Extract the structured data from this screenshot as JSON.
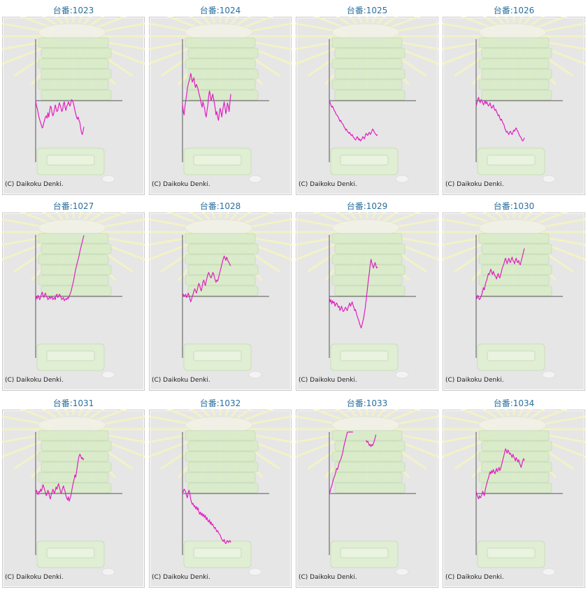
{
  "colors": {
    "line": "#e020c0",
    "axis": "#555555",
    "background": "#e6e6e6",
    "title": "#2a6f9e"
  },
  "copyright": "(C) Daikoku Denki.",
  "chart_data": [
    {
      "type": "line",
      "title": "台番:1023",
      "values": [
        0,
        -10,
        -14,
        -22,
        -30,
        -35,
        -40,
        -45,
        -50,
        -48,
        -40,
        -35,
        -30,
        -28,
        -32,
        -22,
        -30,
        -20,
        -10,
        -12,
        -22,
        -28,
        -24,
        -16,
        -8,
        -14,
        -20,
        -18,
        -10,
        -4,
        -8,
        -14,
        -20,
        -16,
        -6,
        -2,
        -12,
        -18,
        -10,
        -8,
        -2,
        -6,
        -10,
        -4,
        2,
        0,
        -4,
        -10,
        -18,
        -24,
        -30,
        -34,
        -30,
        -36,
        -40,
        -50,
        -58,
        -62,
        -56,
        -48
      ]
    },
    {
      "type": "line",
      "title": "台番:1024",
      "values": [
        -6,
        -20,
        -26,
        -10,
        0,
        10,
        22,
        30,
        36,
        40,
        50,
        44,
        34,
        38,
        42,
        30,
        24,
        30,
        26,
        22,
        14,
        8,
        2,
        -6,
        -12,
        -2,
        -8,
        -14,
        -24,
        -30,
        -18,
        -8,
        8,
        18,
        10,
        0,
        6,
        12,
        4,
        -4,
        -14,
        -26,
        -20,
        -30,
        -36,
        -24,
        -14,
        -20,
        -30,
        -20,
        -10,
        -2,
        -12,
        -24,
        -16,
        -4,
        -10,
        -20,
        -4,
        12
      ]
    },
    {
      "type": "line",
      "title": "台番:1025",
      "values": [
        0,
        -4,
        -8,
        -12,
        -10,
        -14,
        -18,
        -20,
        -24,
        -26,
        -28,
        -30,
        -34,
        -38,
        -36,
        -40,
        -42,
        -44,
        -48,
        -50,
        -54,
        -52,
        -56,
        -58,
        -60,
        -58,
        -62,
        -64,
        -62,
        -66,
        -68,
        -70,
        -72,
        -70,
        -66,
        -68,
        -72,
        -70,
        -74,
        -72,
        -70,
        -66,
        -68,
        -70,
        -64,
        -60,
        -62,
        -64,
        -60,
        -58,
        -62,
        -60,
        -56,
        -52,
        -54,
        -58,
        -60,
        -62,
        -64,
        -62
      ]
    },
    {
      "type": "line",
      "title": "台番:1026",
      "values": [
        -10,
        -4,
        2,
        6,
        0,
        -4,
        2,
        0,
        -4,
        -8,
        -4,
        0,
        -6,
        -2,
        -6,
        -10,
        -8,
        -4,
        -10,
        -14,
        -12,
        -8,
        -14,
        -18,
        -16,
        -20,
        -24,
        -28,
        -26,
        -32,
        -36,
        -34,
        -38,
        -42,
        -44,
        -50,
        -54,
        -58,
        -56,
        -60,
        -62,
        -58,
        -56,
        -60,
        -62,
        -58,
        -54,
        -56,
        -52,
        -50,
        -54,
        -56,
        -60,
        -64,
        -66,
        -68,
        -72,
        -74,
        -72,
        -68
      ]
    },
    {
      "type": "line",
      "title": "台番:1027",
      "values": [
        -8,
        0,
        -4,
        2,
        -2,
        -6,
        -2,
        4,
        8,
        2,
        -2,
        4,
        6,
        0,
        -2,
        -6,
        -4,
        0,
        -4,
        -2,
        0,
        -6,
        -4,
        -2,
        -6,
        2,
        4,
        -2,
        0,
        4,
        2,
        -2,
        -6,
        -4,
        -2,
        -8,
        -6,
        -4,
        -6,
        -2,
        -4,
        0,
        4,
        8,
        14,
        20,
        26,
        34,
        42,
        50,
        56,
        62,
        68,
        74,
        82,
        88,
        94,
        100,
        106,
        112
      ]
    },
    {
      "type": "line",
      "title": "台番:1028",
      "values": [
        0,
        4,
        0,
        2,
        4,
        -2,
        0,
        6,
        2,
        -4,
        -10,
        -6,
        0,
        4,
        10,
        14,
        10,
        6,
        12,
        18,
        24,
        20,
        14,
        10,
        18,
        26,
        30,
        24,
        20,
        28,
        34,
        40,
        44,
        40,
        36,
        34,
        38,
        44,
        42,
        36,
        30,
        26,
        30,
        28,
        34,
        40,
        46,
        52,
        58,
        64,
        70,
        74,
        70,
        66,
        72,
        68,
        64,
        62,
        58,
        56
      ]
    },
    {
      "type": "line",
      "title": "台番:1029",
      "values": [
        -2,
        -10,
        -6,
        -14,
        -8,
        -12,
        -10,
        -18,
        -14,
        -12,
        -16,
        -20,
        -18,
        -26,
        -22,
        -18,
        -24,
        -28,
        -26,
        -22,
        -20,
        -24,
        -26,
        -20,
        -16,
        -12,
        -18,
        -14,
        -10,
        -16,
        -20,
        -26,
        -24,
        -30,
        -36,
        -40,
        -44,
        -50,
        -54,
        -58,
        -52,
        -46,
        -40,
        -30,
        -20,
        -8,
        6,
        20,
        32,
        44,
        58,
        68,
        62,
        56,
        52,
        58,
        62,
        56,
        52,
        54
      ]
    },
    {
      "type": "line",
      "title": "台番:1030",
      "values": [
        0,
        -4,
        2,
        -2,
        -6,
        -4,
        0,
        4,
        10,
        16,
        12,
        20,
        26,
        30,
        36,
        42,
        40,
        46,
        50,
        44,
        40,
        46,
        42,
        38,
        36,
        32,
        38,
        42,
        36,
        34,
        40,
        46,
        52,
        56,
        60,
        66,
        70,
        64,
        60,
        66,
        70,
        64,
        62,
        68,
        72,
        66,
        64,
        60,
        66,
        70,
        64,
        62,
        66,
        60,
        58,
        64,
        70,
        76,
        82,
        88
      ]
    },
    {
      "type": "line",
      "title": "台番:1031",
      "values": [
        0,
        6,
        2,
        -2,
        4,
        2,
        8,
        4,
        10,
        16,
        12,
        6,
        2,
        -4,
        0,
        6,
        2,
        -6,
        -10,
        -2,
        2,
        8,
        4,
        0,
        6,
        12,
        8,
        14,
        18,
        12,
        6,
        0,
        4,
        10,
        14,
        8,
        4,
        -4,
        -8,
        -12,
        -6,
        -14,
        -10,
        -4,
        4,
        12,
        20,
        26,
        34,
        30,
        40,
        50,
        60,
        68,
        72,
        70,
        64,
        66,
        62,
        64
      ]
    },
    {
      "type": "line",
      "title": "台番:1032",
      "values": [
        0,
        4,
        8,
        6,
        2,
        -4,
        -8,
        2,
        6,
        0,
        -10,
        -16,
        -20,
        -18,
        -24,
        -22,
        -28,
        -24,
        -30,
        -26,
        -34,
        -38,
        -34,
        -40,
        -36,
        -42,
        -38,
        -44,
        -40,
        -48,
        -44,
        -50,
        -52,
        -48,
        -56,
        -52,
        -58,
        -56,
        -60,
        -64,
        -62,
        -66,
        -70,
        -68,
        -72,
        -74,
        -76,
        -80,
        -84,
        -86,
        -88,
        -84,
        -90,
        -92,
        -88,
        -86,
        -90,
        -88,
        -86,
        -90
      ]
    },
    {
      "type": "line",
      "title": "台番:1033",
      "values": [
        0,
        4,
        10,
        14,
        20,
        26,
        30,
        34,
        40,
        46,
        44,
        50,
        56,
        60,
        62,
        68,
        72,
        80,
        88,
        94,
        100,
        106,
        112,
        120,
        128,
        136,
        142,
        148,
        150,
        152,
        null,
        null,
        null,
        null,
        null,
        null,
        null,
        null,
        null,
        null,
        null,
        null,
        null,
        null,
        null,
        null,
        null,
        null,
        null,
        null,
        null,
        null,
        null,
        null,
        null,
        null,
        null,
        null,
        null,
        null
      ]
    },
    {
      "type": "line",
      "title": "台番:1034",
      "values": [
        4,
        -2,
        -6,
        -10,
        -4,
        -8,
        -6,
        -2,
        4,
        0,
        -4,
        6,
        12,
        18,
        24,
        28,
        34,
        40,
        36,
        42,
        38,
        44,
        40,
        36,
        42,
        46,
        40,
        44,
        48,
        42,
        46,
        52,
        58,
        64,
        70,
        76,
        82,
        78,
        74,
        80,
        76,
        72,
        74,
        70,
        66,
        72,
        68,
        64,
        60,
        66,
        62,
        58,
        62,
        56,
        52,
        48,
        54,
        60,
        64,
        60
      ]
    }
  ]
}
